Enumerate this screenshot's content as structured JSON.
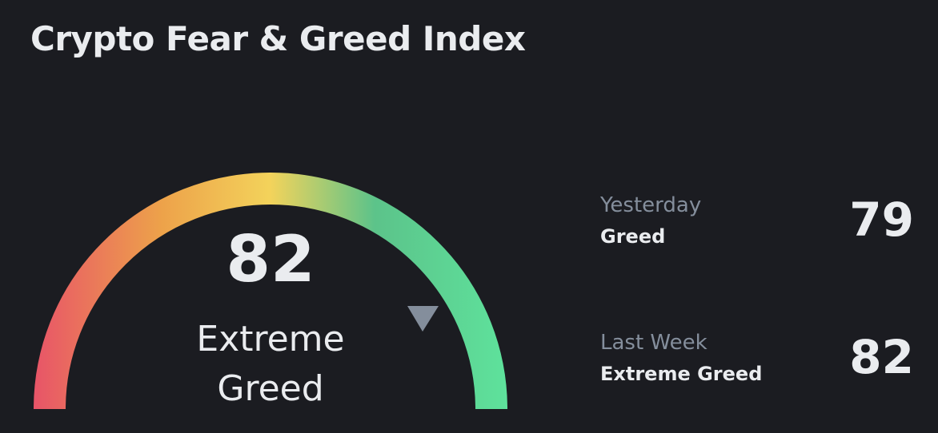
{
  "header": {
    "title": "Crypto Fear & Greed Index"
  },
  "gauge": {
    "value": "82",
    "classification_line1": "Extreme",
    "classification_line2": "Greed",
    "range": [
      0,
      100
    ],
    "level": 82,
    "colors": [
      "#e85468",
      "#eda24a",
      "#f3d35b",
      "#5cc38a",
      "#5ee29c"
    ],
    "pointer_color": "#848e9c"
  },
  "history": [
    {
      "period": "Yesterday",
      "classification": "Greed",
      "value": "79"
    },
    {
      "period": "Last Week",
      "classification": "Extreme Greed",
      "value": "82"
    }
  ]
}
